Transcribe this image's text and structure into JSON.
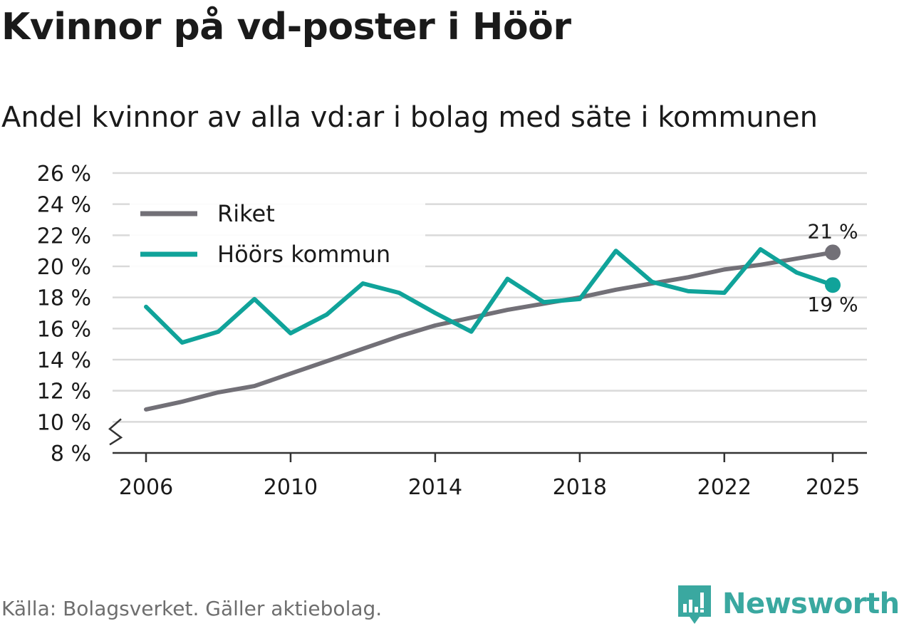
{
  "chart_data": {
    "type": "line",
    "title": "Kvinnor på vd-poster i Höör",
    "subtitle": "Andel kvinnor av alla vd:ar i bolag med säte i kommunen",
    "xlabel": "",
    "ylabel": "",
    "ylim": [
      8,
      26
    ],
    "yticks": [
      8,
      10,
      12,
      14,
      16,
      18,
      20,
      22,
      24,
      26
    ],
    "ytick_labels": [
      "8 %",
      "10 %",
      "12 %",
      "14 %",
      "16 %",
      "18 %",
      "20 %",
      "22 %",
      "24 %",
      "26 %"
    ],
    "xlim": [
      2005,
      2026
    ],
    "xticks": [
      2006,
      2010,
      2014,
      2018,
      2022,
      2025
    ],
    "xtick_labels": [
      "2006",
      "2010",
      "2014",
      "2018",
      "2022",
      "2025"
    ],
    "grid": true,
    "legend_position": "top-left",
    "axis_break": true,
    "x": [
      2006,
      2007,
      2008,
      2009,
      2010,
      2011,
      2012,
      2013,
      2014,
      2015,
      2016,
      2017,
      2018,
      2019,
      2020,
      2021,
      2022,
      2023,
      2024,
      2025
    ],
    "series": [
      {
        "name": "Riket",
        "color": "#727077",
        "values": [
          10.8,
          11.3,
          11.9,
          12.3,
          13.1,
          13.9,
          14.7,
          15.5,
          16.2,
          16.7,
          17.2,
          17.6,
          18.0,
          18.5,
          18.9,
          19.3,
          19.8,
          20.1,
          20.5,
          20.9
        ],
        "end_label": "21 %"
      },
      {
        "name": "Höörs kommun",
        "color": "#10a39a",
        "values": [
          17.4,
          15.1,
          15.8,
          17.9,
          15.7,
          16.9,
          18.9,
          18.3,
          17.0,
          15.8,
          19.2,
          17.7,
          17.9,
          21.0,
          19.0,
          18.4,
          18.3,
          21.1,
          19.6,
          18.8
        ],
        "end_label": "19 %"
      }
    ]
  },
  "footer": {
    "source": "Källa: Bolagsverket. Gäller aktiebolag.",
    "brand": "Newsworthy",
    "brand_color": "#3aa8a0",
    "brand_icon": "bar-chart-icon"
  }
}
